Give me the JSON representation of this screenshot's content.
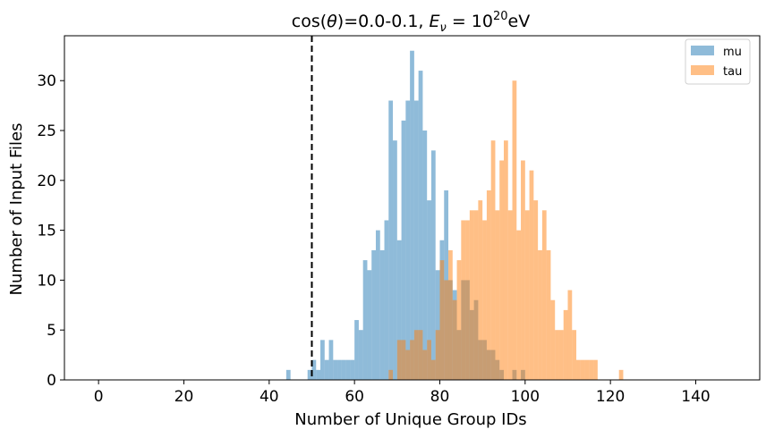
{
  "chart_data": {
    "type": "bar",
    "title": "cos(θ)=0.0-0.1, E_ν = 10^20 eV",
    "title_parts": {
      "prefix": "cos(",
      "theta": "θ",
      "mid": ")=0.0-0.1, ",
      "e": "E",
      "nu": "ν",
      "eq": " = 10",
      "exp": "20",
      "unit": "eV"
    },
    "xlabel": "Number of Unique Group IDs",
    "ylabel": "Number of Input Files",
    "xlim": [
      -8,
      155
    ],
    "ylim": [
      0,
      34.5
    ],
    "xticks": [
      0,
      20,
      40,
      60,
      80,
      100,
      120,
      140
    ],
    "yticks": [
      0,
      5,
      10,
      15,
      20,
      25,
      30
    ],
    "bin_width": 1,
    "vline": {
      "x": 50,
      "style": "dashed",
      "color": "#000000"
    },
    "legend": {
      "position": "top-right"
    },
    "series": [
      {
        "name": "mu",
        "color": "#1f77b4",
        "alpha": 0.5,
        "x": [
          44,
          49,
          50,
          51,
          52,
          53,
          54,
          55,
          56,
          57,
          58,
          59,
          60,
          61,
          62,
          63,
          64,
          65,
          66,
          67,
          68,
          69,
          70,
          71,
          72,
          73,
          74,
          75,
          76,
          77,
          78,
          79,
          80,
          81,
          82,
          83,
          84,
          85,
          86,
          87,
          88,
          89,
          90,
          91,
          92,
          93,
          94,
          95,
          96,
          97,
          98,
          99
        ],
        "values": [
          1,
          1,
          2,
          1,
          4,
          2,
          4,
          2,
          2,
          2,
          2,
          2,
          6,
          5,
          12,
          11,
          13,
          15,
          13,
          16,
          28,
          24,
          14,
          26,
          28,
          33,
          28,
          31,
          25,
          18,
          23,
          11,
          14,
          19,
          10,
          9,
          5,
          10,
          10,
          7,
          8,
          4,
          4,
          3,
          3,
          2,
          1,
          0,
          0,
          1,
          0,
          1
        ]
      },
      {
        "name": "tau",
        "color": "#ff7f0e",
        "alpha": 0.5,
        "x": [
          68,
          70,
          71,
          72,
          73,
          74,
          75,
          76,
          77,
          78,
          79,
          80,
          81,
          82,
          83,
          84,
          85,
          86,
          87,
          88,
          89,
          90,
          91,
          92,
          93,
          94,
          95,
          96,
          97,
          98,
          99,
          100,
          101,
          102,
          103,
          104,
          105,
          106,
          107,
          108,
          109,
          110,
          111,
          112,
          113,
          114,
          115,
          116,
          122
        ],
        "values": [
          1,
          4,
          4,
          3,
          4,
          5,
          5,
          3,
          4,
          2,
          5,
          12,
          10,
          13,
          8,
          12,
          16,
          16,
          17,
          17,
          18,
          16,
          19,
          24,
          17,
          22,
          24,
          17,
          30,
          15,
          22,
          17,
          21,
          18,
          13,
          17,
          13,
          8,
          5,
          5,
          7,
          9,
          5,
          2,
          2,
          2,
          2,
          2,
          1
        ]
      }
    ]
  }
}
